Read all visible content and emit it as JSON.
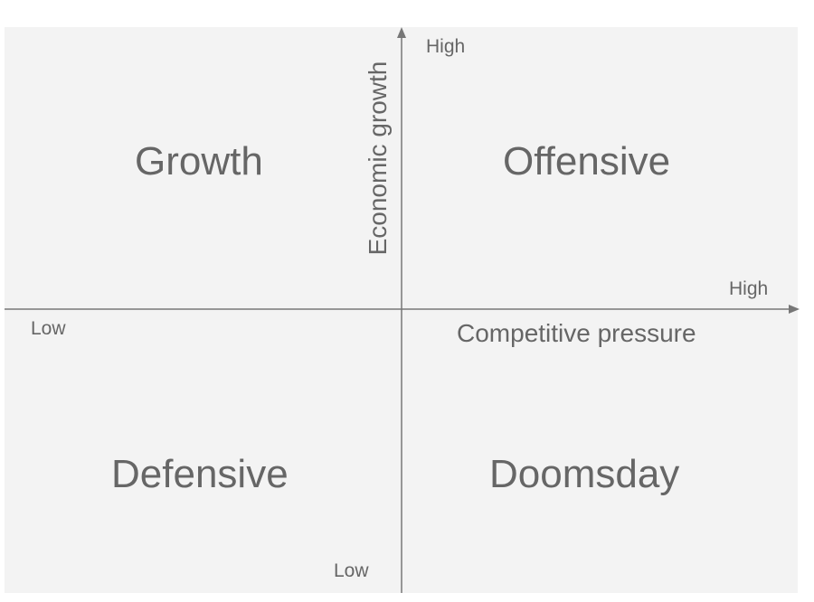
{
  "quadrants": {
    "top_left": "Growth",
    "top_right": "Offensive",
    "bottom_left": "Defensive",
    "bottom_right": "Doomsday"
  },
  "x_axis": {
    "title": "Competitive pressure",
    "low": "Low",
    "high": "High"
  },
  "y_axis": {
    "title": "Economic growth",
    "low": "Low",
    "high": "High"
  },
  "colors": {
    "background": "#f3f3f3",
    "axis": "#777777",
    "text": "#666666"
  }
}
